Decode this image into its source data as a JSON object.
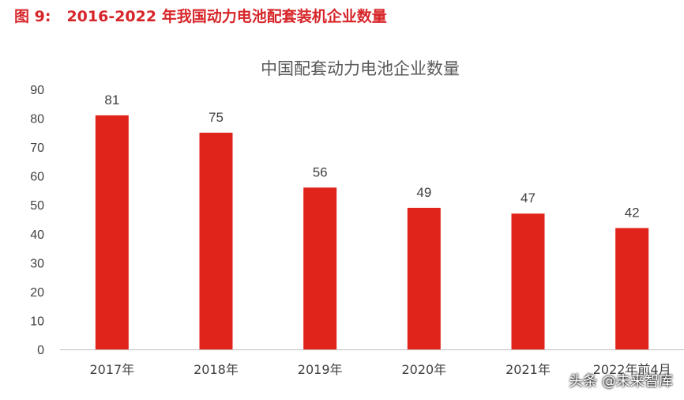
{
  "caption": {
    "number": "图 9:",
    "text": "2016-2022 年我国动力电池配套装机企业数量"
  },
  "watermark": "头条 @未来智库",
  "colors": {
    "bar": "#e0231b",
    "caption": "#d7262a",
    "axis": "#bfbfbf",
    "text": "#404040"
  },
  "chart_data": {
    "type": "bar",
    "title": "中国配套动力电池企业数量",
    "categories": [
      "2017年",
      "2018年",
      "2019年",
      "2020年",
      "2021年",
      "2022年前4月"
    ],
    "values": [
      81,
      75,
      56,
      49,
      47,
      42
    ],
    "value_labels": [
      "81",
      "75",
      "56",
      "49",
      "47",
      "42"
    ],
    "ylim": [
      0,
      90
    ],
    "yticks": [
      0,
      10,
      20,
      30,
      40,
      50,
      60,
      70,
      80,
      90
    ],
    "xlabel": "",
    "ylabel": "",
    "grid": false,
    "legend": "none"
  }
}
